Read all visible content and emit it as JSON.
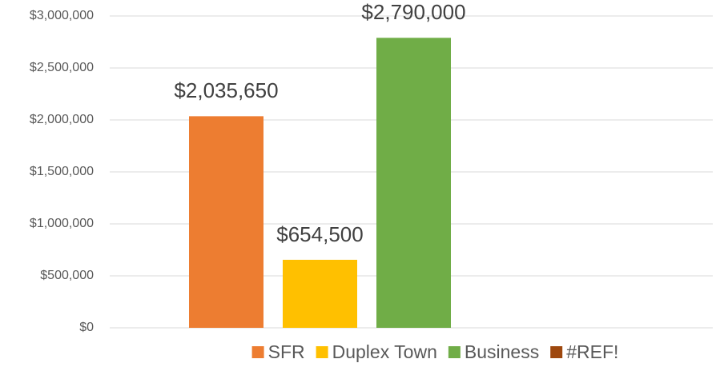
{
  "chart_data": {
    "type": "bar",
    "categories": [
      null
    ],
    "series": [
      {
        "name": "SFR",
        "color": "#ed7d31",
        "values": [
          2035650
        ],
        "value_labels": [
          "$2,035,650"
        ]
      },
      {
        "name": "Duplex Town",
        "color": "#ffc000",
        "values": [
          654500
        ],
        "value_labels": [
          "$654,500"
        ]
      },
      {
        "name": "Business",
        "color": "#70ad47",
        "values": [
          2790000
        ],
        "value_labels": [
          "$2,790,000"
        ]
      },
      {
        "name": "#REF!",
        "color": "#9e480e",
        "values": [
          null
        ],
        "value_labels": [
          null
        ]
      }
    ],
    "ylim": [
      0,
      3000000
    ],
    "yticks": [
      {
        "value": 0,
        "label": "$0"
      },
      {
        "value": 500000,
        "label": "$500,000"
      },
      {
        "value": 1000000,
        "label": "$1,000,000"
      },
      {
        "value": 1500000,
        "label": "$1,500,000"
      },
      {
        "value": 2000000,
        "label": "$2,000,000"
      },
      {
        "value": 2500000,
        "label": "$2,500,000"
      },
      {
        "value": 3000000,
        "label": "$3,000,000"
      }
    ],
    "grid": true,
    "legend": "bottom"
  }
}
